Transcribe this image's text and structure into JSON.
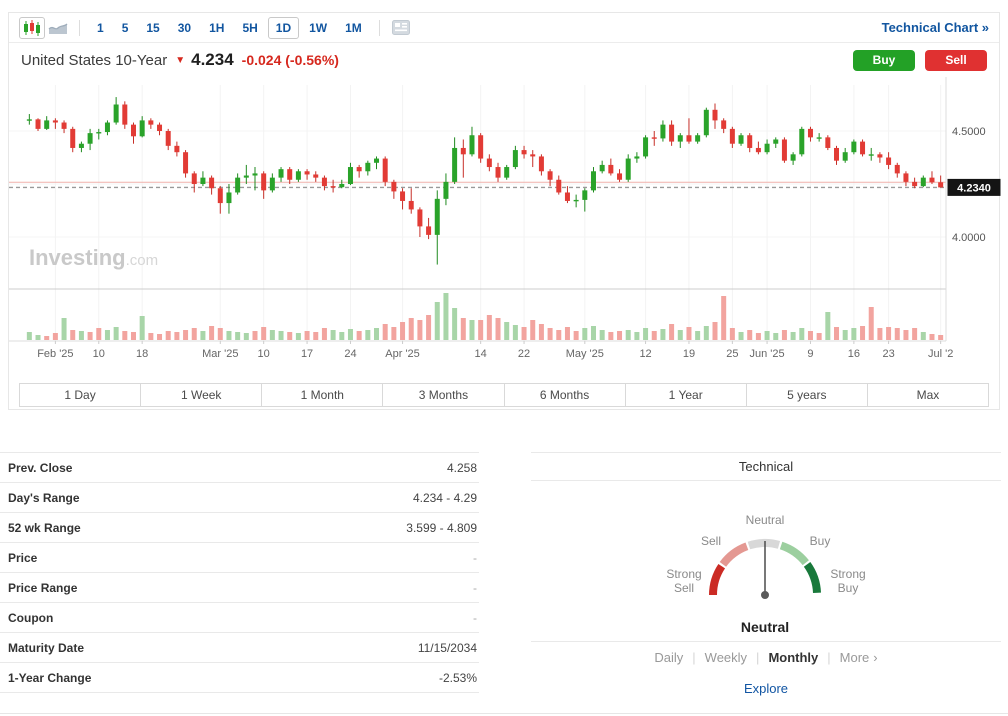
{
  "toolbar": {
    "timeframes": [
      "1",
      "5",
      "15",
      "30",
      "1H",
      "5H",
      "1D",
      "1W",
      "1M"
    ],
    "selected_timeframe": "1D",
    "technical_chart_link": "Technical Chart »"
  },
  "header": {
    "title": "United States 10-Year",
    "direction_icon": "down-arrow",
    "price": "4.234",
    "change": "-0.024 (-0.56%)",
    "buy_label": "Buy",
    "sell_label": "Sell",
    "buy_color": "#23a126",
    "sell_color": "#e03131",
    "change_color": "#d6281e"
  },
  "chart_data": {
    "type": "candlestick",
    "title": "United States 10-Year daily yield",
    "watermark_bold": "Investing",
    "watermark_light": ".com",
    "ylim": [
      3.85,
      4.68
    ],
    "y_axis_ticks": [
      {
        "label": "4.5000",
        "price": 4.5
      },
      {
        "label": "4.0000",
        "price": 4.0
      }
    ],
    "current_price_badge": "4.2340",
    "current_price": 4.234,
    "prev_close_line": 4.258,
    "legend_position": "none",
    "grid": "faint",
    "up_color": "#2aa32a",
    "up_stroke": "#1f8a1f",
    "down_color": "#e23b35",
    "down_stroke": "#c62f28",
    "vol_up_color": "#a8d5a8",
    "vol_down_color": "#f2a49f",
    "x_ticks": [
      [
        3,
        "Feb '25"
      ],
      [
        8,
        "10"
      ],
      [
        13,
        "18"
      ],
      [
        22,
        "Mar '25"
      ],
      [
        27,
        "10"
      ],
      [
        32,
        "17"
      ],
      [
        37,
        "24"
      ],
      [
        43,
        "Apr '25"
      ],
      [
        52,
        "14"
      ],
      [
        57,
        "22"
      ],
      [
        64,
        "May '25"
      ],
      [
        71,
        "12"
      ],
      [
        76,
        "19"
      ],
      [
        81,
        "25"
      ],
      [
        85,
        "Jun '25"
      ],
      [
        90,
        "9"
      ],
      [
        95,
        "16"
      ],
      [
        99,
        "23"
      ],
      [
        105,
        "Jul '2"
      ]
    ],
    "ohlcv_note": "open, high, low, close, signed volume height (+green / -red)",
    "ohlcv": [
      [
        4.55,
        4.58,
        4.53,
        4.555,
        8
      ],
      [
        4.555,
        4.56,
        4.5,
        4.51,
        5
      ],
      [
        4.51,
        4.57,
        4.505,
        4.55,
        -4
      ],
      [
        4.55,
        4.56,
        4.51,
        4.54,
        -7
      ],
      [
        4.54,
        4.55,
        4.49,
        4.51,
        22
      ],
      [
        4.51,
        4.52,
        4.4,
        4.42,
        -10
      ],
      [
        4.42,
        4.45,
        4.4,
        4.44,
        9
      ],
      [
        4.44,
        4.51,
        4.41,
        4.49,
        -8
      ],
      [
        4.49,
        4.51,
        4.46,
        4.495,
        -12
      ],
      [
        4.495,
        4.55,
        4.48,
        4.54,
        10
      ],
      [
        4.54,
        4.66,
        4.53,
        4.625,
        13
      ],
      [
        4.625,
        4.64,
        4.51,
        4.53,
        -9
      ],
      [
        4.53,
        4.54,
        4.44,
        4.475,
        -8
      ],
      [
        4.475,
        4.57,
        4.47,
        4.55,
        24
      ],
      [
        4.55,
        4.56,
        4.51,
        4.53,
        -7
      ],
      [
        4.53,
        4.54,
        4.48,
        4.5,
        -6
      ],
      [
        4.5,
        4.51,
        4.41,
        4.43,
        -9
      ],
      [
        4.43,
        4.45,
        4.38,
        4.4,
        -8
      ],
      [
        4.4,
        4.41,
        4.28,
        4.3,
        -10
      ],
      [
        4.3,
        4.31,
        4.21,
        4.25,
        -12
      ],
      [
        4.25,
        4.31,
        4.24,
        4.28,
        9
      ],
      [
        4.28,
        4.29,
        4.2,
        4.23,
        -14
      ],
      [
        4.23,
        4.24,
        4.11,
        4.16,
        -12
      ],
      [
        4.16,
        4.25,
        4.11,
        4.21,
        9
      ],
      [
        4.21,
        4.3,
        4.2,
        4.28,
        8
      ],
      [
        4.28,
        4.34,
        4.25,
        4.29,
        7
      ],
      [
        4.29,
        4.33,
        4.22,
        4.3,
        -9
      ],
      [
        4.3,
        4.31,
        4.18,
        4.22,
        -13
      ],
      [
        4.22,
        4.3,
        4.21,
        4.28,
        10
      ],
      [
        4.28,
        4.33,
        4.26,
        4.32,
        9
      ],
      [
        4.32,
        4.33,
        4.25,
        4.27,
        -8
      ],
      [
        4.27,
        4.32,
        4.26,
        4.31,
        7
      ],
      [
        4.31,
        4.32,
        4.27,
        4.295,
        -9
      ],
      [
        4.295,
        4.31,
        4.26,
        4.28,
        -8
      ],
      [
        4.28,
        4.29,
        4.22,
        4.24,
        -12
      ],
      [
        4.24,
        4.27,
        4.21,
        4.235,
        10
      ],
      [
        4.235,
        4.27,
        4.23,
        4.25,
        8
      ],
      [
        4.25,
        4.35,
        4.245,
        4.33,
        11
      ],
      [
        4.33,
        4.34,
        4.28,
        4.31,
        -9
      ],
      [
        4.31,
        4.36,
        4.29,
        4.35,
        10
      ],
      [
        4.35,
        4.38,
        4.32,
        4.37,
        12
      ],
      [
        4.37,
        4.38,
        4.24,
        4.26,
        -16
      ],
      [
        4.26,
        4.27,
        4.18,
        4.215,
        -13
      ],
      [
        4.215,
        4.23,
        4.13,
        4.17,
        -18
      ],
      [
        4.17,
        4.23,
        4.11,
        4.13,
        -22
      ],
      [
        4.13,
        4.14,
        4.0,
        4.05,
        -20
      ],
      [
        4.05,
        4.09,
        3.99,
        4.01,
        -25
      ],
      [
        4.01,
        4.22,
        3.87,
        4.18,
        38
      ],
      [
        4.18,
        4.3,
        4.15,
        4.26,
        47
      ],
      [
        4.26,
        4.47,
        4.25,
        4.42,
        32
      ],
      [
        4.42,
        4.46,
        4.28,
        4.39,
        -22
      ],
      [
        4.39,
        4.52,
        4.38,
        4.48,
        20
      ],
      [
        4.48,
        4.49,
        4.35,
        4.37,
        -20
      ],
      [
        4.37,
        4.39,
        4.31,
        4.33,
        -25
      ],
      [
        4.33,
        4.35,
        4.26,
        4.28,
        -22
      ],
      [
        4.28,
        4.34,
        4.27,
        4.33,
        18
      ],
      [
        4.33,
        4.43,
        4.32,
        4.41,
        15
      ],
      [
        4.41,
        4.43,
        4.37,
        4.39,
        -13
      ],
      [
        4.39,
        4.41,
        4.33,
        4.38,
        -20
      ],
      [
        4.38,
        4.39,
        4.29,
        4.31,
        -16
      ],
      [
        4.31,
        4.32,
        4.24,
        4.27,
        -12
      ],
      [
        4.27,
        4.29,
        4.2,
        4.21,
        -10
      ],
      [
        4.21,
        4.24,
        4.16,
        4.17,
        -13
      ],
      [
        4.17,
        4.2,
        4.14,
        4.175,
        -9
      ],
      [
        4.175,
        4.23,
        4.12,
        4.22,
        12
      ],
      [
        4.22,
        4.33,
        4.21,
        4.31,
        14
      ],
      [
        4.31,
        4.36,
        4.3,
        4.34,
        10
      ],
      [
        4.34,
        4.37,
        4.29,
        4.3,
        -8
      ],
      [
        4.3,
        4.32,
        4.26,
        4.27,
        -9
      ],
      [
        4.27,
        4.39,
        4.26,
        4.37,
        10
      ],
      [
        4.37,
        4.4,
        4.35,
        4.38,
        8
      ],
      [
        4.38,
        4.48,
        4.37,
        4.47,
        12
      ],
      [
        4.47,
        4.5,
        4.43,
        4.465,
        -9
      ],
      [
        4.465,
        4.55,
        4.45,
        4.53,
        11
      ],
      [
        4.53,
        4.55,
        4.43,
        4.45,
        -16
      ],
      [
        4.45,
        4.49,
        4.42,
        4.48,
        10
      ],
      [
        4.48,
        4.56,
        4.44,
        4.45,
        -13
      ],
      [
        4.45,
        4.49,
        4.44,
        4.48,
        9
      ],
      [
        4.48,
        4.61,
        4.47,
        4.6,
        14
      ],
      [
        4.6,
        4.63,
        4.51,
        4.55,
        -18
      ],
      [
        4.55,
        4.56,
        4.49,
        4.51,
        -44
      ],
      [
        4.51,
        4.52,
        4.42,
        4.44,
        -12
      ],
      [
        4.44,
        4.49,
        4.43,
        4.48,
        8
      ],
      [
        4.48,
        4.49,
        4.4,
        4.42,
        -10
      ],
      [
        4.42,
        4.45,
        4.39,
        4.4,
        -7
      ],
      [
        4.4,
        4.46,
        4.39,
        4.44,
        9
      ],
      [
        4.44,
        4.47,
        4.42,
        4.46,
        7
      ],
      [
        4.46,
        4.47,
        4.35,
        4.36,
        -10
      ],
      [
        4.36,
        4.4,
        4.34,
        4.39,
        8
      ],
      [
        4.39,
        4.52,
        4.38,
        4.51,
        12
      ],
      [
        4.51,
        4.52,
        4.45,
        4.47,
        -9
      ],
      [
        4.47,
        4.49,
        4.45,
        4.47,
        -7
      ],
      [
        4.47,
        4.48,
        4.41,
        4.42,
        28
      ],
      [
        4.42,
        4.43,
        4.34,
        4.36,
        -13
      ],
      [
        4.36,
        4.42,
        4.35,
        4.4,
        10
      ],
      [
        4.4,
        4.46,
        4.39,
        4.45,
        12
      ],
      [
        4.45,
        4.46,
        4.38,
        4.39,
        -14
      ],
      [
        4.39,
        4.42,
        4.36,
        4.39,
        -33
      ],
      [
        4.39,
        4.4,
        4.35,
        4.375,
        -12
      ],
      [
        4.375,
        4.4,
        4.32,
        4.34,
        -13
      ],
      [
        4.34,
        4.35,
        4.28,
        4.3,
        -12
      ],
      [
        4.3,
        4.31,
        4.24,
        4.26,
        -10
      ],
      [
        4.26,
        4.28,
        4.23,
        4.24,
        -12
      ],
      [
        4.24,
        4.29,
        4.235,
        4.28,
        8
      ],
      [
        4.28,
        4.31,
        4.25,
        4.258,
        -6
      ],
      [
        4.258,
        4.29,
        4.234,
        4.234,
        -5
      ]
    ]
  },
  "range_buttons": [
    "1 Day",
    "1 Week",
    "1 Month",
    "3 Months",
    "6 Months",
    "1 Year",
    "5 years",
    "Max"
  ],
  "stats": {
    "rows": [
      {
        "label": "Prev. Close",
        "value": "4.258"
      },
      {
        "label": "Day's Range",
        "value": "4.234 - 4.29"
      },
      {
        "label": "52 wk Range",
        "value": "3.599 - 4.809"
      },
      {
        "label": "Price",
        "value": "-"
      },
      {
        "label": "Price Range",
        "value": "-"
      },
      {
        "label": "Coupon",
        "value": "-"
      },
      {
        "label": "Maturity Date",
        "value": "11/15/2034"
      },
      {
        "label": "1-Year Change",
        "value": "-2.53%"
      }
    ]
  },
  "technical": {
    "header": "Technical",
    "gauge": {
      "top": "Neutral",
      "left_upper": "Sell",
      "right_upper": "Buy",
      "left_lower": "Strong Sell",
      "right_lower": "Strong Buy",
      "segment_colors": [
        "#cb2b24",
        "#e49892",
        "#d8d8d8",
        "#9ccf9f",
        "#19793b"
      ],
      "needle_position": "neutral"
    },
    "verdict": "Neutral",
    "tabs": [
      "Daily",
      "Weekly",
      "Monthly"
    ],
    "selected_tab": "Monthly",
    "more_label": "More",
    "more_chevron": "›",
    "explore_label": "Explore",
    "link_color": "#1256a0"
  }
}
